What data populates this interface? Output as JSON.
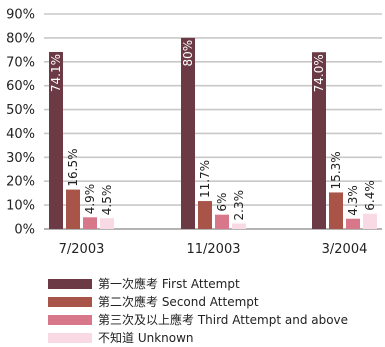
{
  "chart_data": {
    "type": "bar",
    "categories": [
      "7/2003",
      "11/2003",
      "3/2004"
    ],
    "y_ticks": [
      "0%",
      "10%",
      "20%",
      "30%",
      "40%",
      "50%",
      "60%",
      "70%",
      "80%",
      "90%"
    ],
    "ylim": [
      0,
      90
    ],
    "grid": true,
    "legend_position": "bottom",
    "series": [
      {
        "name": "第一次應考 First Attempt",
        "color": "#6b3a45",
        "values": [
          74.1,
          80.0,
          74.0
        ],
        "labels": [
          "74.1%",
          "80%",
          "74.0%"
        ]
      },
      {
        "name": "第二次應考 Second Attempt",
        "color": "#a85448",
        "values": [
          16.5,
          11.7,
          15.3
        ],
        "labels": [
          "16.5%",
          "11.7%",
          "15.3%"
        ]
      },
      {
        "name": "第三次及以上應考 Third Attempt and above",
        "color": "#d9778a",
        "values": [
          4.9,
          6.0,
          4.3
        ],
        "labels": [
          "4.9%",
          "6%",
          "4.3%"
        ]
      },
      {
        "name": "不知道 Unknown",
        "color": "#f9d9e3",
        "values": [
          4.5,
          2.3,
          6.4
        ],
        "labels": [
          "4.5%",
          "2.3%",
          "6.4%"
        ]
      }
    ]
  }
}
